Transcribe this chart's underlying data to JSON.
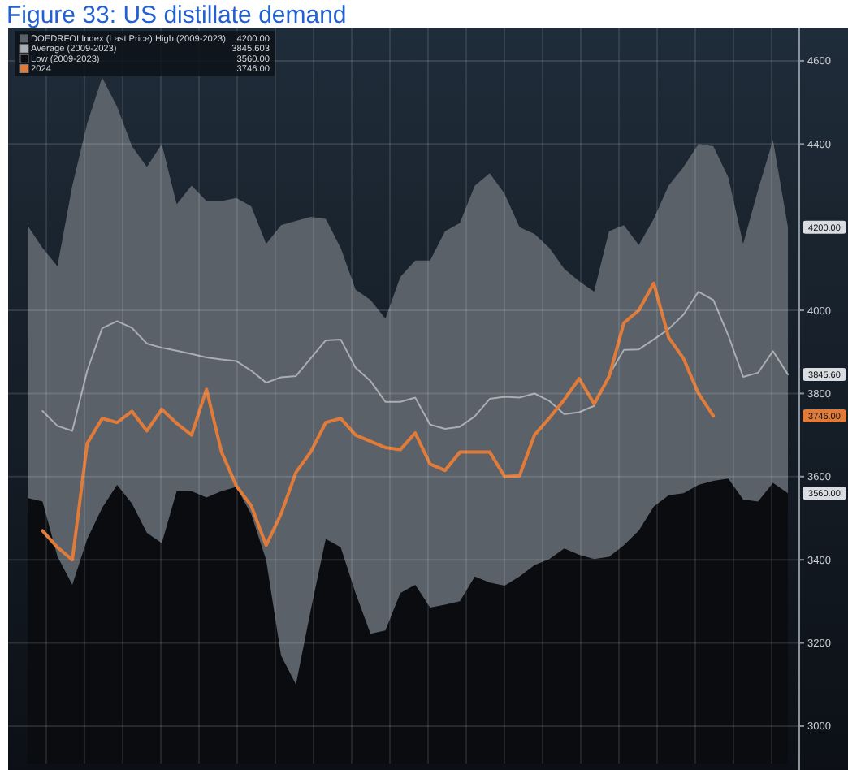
{
  "chart_data": {
    "type": "line",
    "title": "Figure 33: US distillate demand",
    "categories": [
      null,
      null,
      null,
      null,
      null,
      null,
      null,
      null,
      null,
      null,
      null,
      null,
      null,
      null,
      null,
      null,
      null,
      null,
      null,
      null,
      null,
      null,
      null,
      null,
      null,
      null,
      null,
      null,
      null,
      null,
      null,
      null,
      null,
      null,
      null,
      null,
      null,
      null,
      null,
      null,
      null,
      null,
      null,
      null,
      null,
      null,
      null,
      null,
      null,
      null,
      null,
      null
    ],
    "series": [
      {
        "name": "DOEDRFOI Index (Last Price) High (2009-2023)",
        "type": "area",
        "color": "#5b6169",
        "values": [
          4204,
          4150,
          4106,
          4300,
          4450,
          4560,
          4490,
          4395,
          4345,
          4400,
          4255,
          4300,
          4263,
          4263,
          4270,
          4250,
          4160,
          4205,
          4215,
          4225,
          4220,
          4150,
          4050,
          4025,
          3980,
          4080,
          4120,
          4120,
          4190,
          4210,
          4300,
          4330,
          4280,
          4200,
          4184,
          4150,
          4100,
          4070,
          4045,
          4190,
          4205,
          4157,
          4220,
          4300,
          4345,
          4400,
          4395,
          4320,
          4160,
          4290,
          4410,
          4200
        ]
      },
      {
        "name": "Average (2009-2023)",
        "color": "#a9aeb4",
        "values": [
          null,
          3758,
          3722,
          3710,
          3855,
          3957,
          3974,
          3958,
          3920,
          3910,
          3903,
          3895,
          3887,
          3882,
          3878,
          3855,
          3826,
          3839,
          3842,
          3885,
          3928,
          3930,
          3862,
          3830,
          3780,
          3780,
          3790,
          3725,
          3715,
          3720,
          3745,
          3787,
          3792,
          3790,
          3800,
          3782,
          3750,
          3755,
          3770,
          3845,
          3905,
          3906,
          3930,
          3955,
          3990,
          4045,
          4025,
          3940,
          3840,
          3850,
          3902,
          3846
        ]
      },
      {
        "name": "Low (2009-2023)",
        "type": "area",
        "color": "#0a0c0f",
        "values": [
          3549,
          3540,
          3408,
          3340,
          3450,
          3525,
          3580,
          3535,
          3465,
          3440,
          3565,
          3565,
          3550,
          3565,
          3575,
          3510,
          3400,
          3170,
          3100,
          3280,
          3450,
          3430,
          3320,
          3222,
          3230,
          3320,
          3340,
          3285,
          3292,
          3300,
          3360,
          3345,
          3338,
          3360,
          3387,
          3402,
          3427,
          3412,
          3402,
          3407,
          3435,
          3470,
          3528,
          3555,
          3560,
          3580,
          3590,
          3595,
          3545,
          3540,
          3585,
          3560
        ]
      },
      {
        "name": "2024",
        "color": "#e07b39",
        "values": [
          null,
          3470,
          3430,
          3400,
          3680,
          3740,
          3730,
          3757,
          3710,
          3762,
          3728,
          3700,
          3810,
          3660,
          3578,
          3530,
          3435,
          3510,
          3610,
          3660,
          3730,
          3740,
          3700,
          3685,
          3670,
          3665,
          3705,
          3630,
          3615,
          3659,
          3659,
          3659,
          3600,
          3602,
          3700,
          3741,
          3785,
          3836,
          3775,
          3840,
          3970,
          4000,
          4065,
          3935,
          3884,
          3800,
          3746,
          null,
          null,
          null,
          null,
          null
        ]
      }
    ],
    "ylim": [
      2910,
      4680
    ],
    "yticks": [
      3000,
      3200,
      3400,
      3600,
      3800,
      4000,
      4400,
      4600,
      {
        "value": 4200,
        "label": "4200.00"
      },
      {
        "value": 3845.6,
        "label": "3845.60"
      },
      {
        "value": 3746,
        "label": "3746.00"
      },
      {
        "value": 3560,
        "label": "3560.00"
      }
    ],
    "grid": true,
    "legend": "top left",
    "annotations": [
      "4200.00",
      "3845.603",
      "3560.00",
      "3746.00"
    ]
  }
}
